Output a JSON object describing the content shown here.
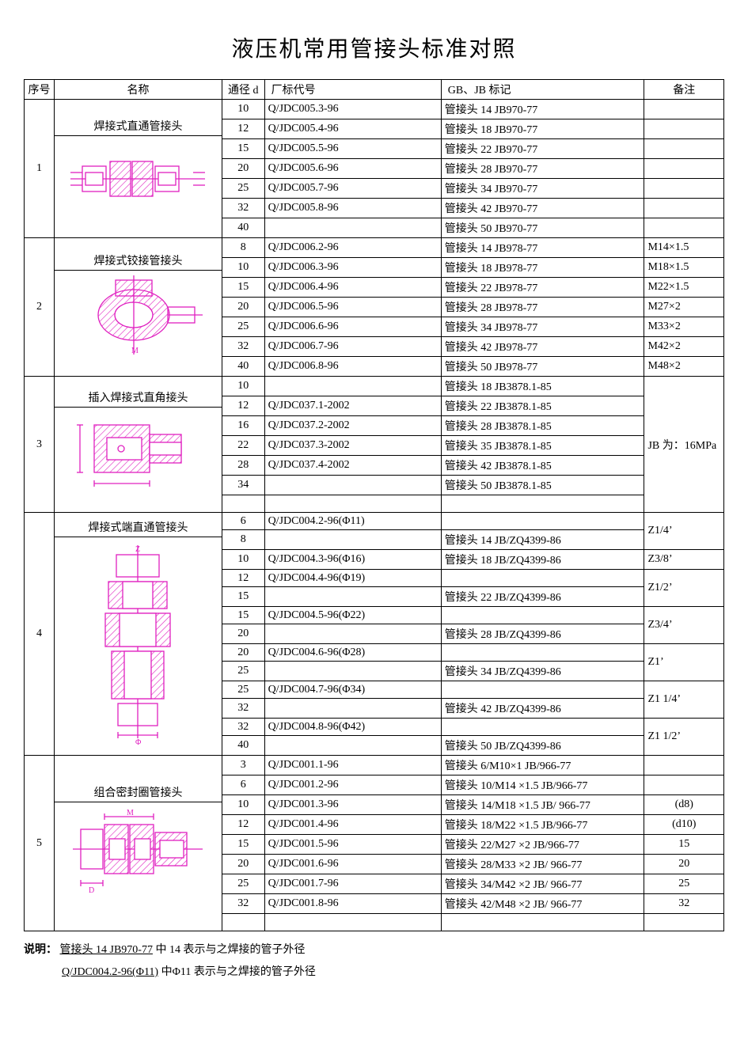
{
  "page": {
    "title": "液压机常用管接头标准对照",
    "headers": {
      "idx": "序号",
      "name": "名称",
      "d": "通径 d",
      "factory": "厂标代号",
      "gb": "GB、JB 标记",
      "note": "备注"
    },
    "diagram_stroke": "#e020c0",
    "diagram_hatch": "#e020c0",
    "sections": [
      {
        "idx": "1",
        "name": "焊接式直通管接头",
        "rows": [
          {
            "d": "10",
            "fac": "Q/JDC005.3-96",
            "gb": "管接头 14    JB970-77",
            "note": ""
          },
          {
            "d": "12",
            "fac": "Q/JDC005.4-96",
            "gb": "管接头 18    JB970-77",
            "note": ""
          },
          {
            "d": "15",
            "fac": "Q/JDC005.5-96",
            "gb": "管接头 22    JB970-77",
            "note": ""
          },
          {
            "d": "20",
            "fac": "Q/JDC005.6-96",
            "gb": "管接头 28    JB970-77",
            "note": ""
          },
          {
            "d": "25",
            "fac": "Q/JDC005.7-96",
            "gb": "管接头 34    JB970-77",
            "note": ""
          },
          {
            "d": "32",
            "fac": "Q/JDC005.8-96",
            "gb": "管接头 42    JB970-77",
            "note": ""
          },
          {
            "d": "40",
            "fac": "",
            "gb": "管接头 50    JB970-77",
            "note": ""
          }
        ]
      },
      {
        "idx": "2",
        "name": "焊接式铰接管接头",
        "rows": [
          {
            "d": "8",
            "fac": "Q/JDC006.2-96",
            "gb": "管接头 14    JB978-77",
            "note": "M14×1.5"
          },
          {
            "d": "10",
            "fac": "Q/JDC006.3-96",
            "gb": "管接头 18    JB978-77",
            "note": "M18×1.5"
          },
          {
            "d": "15",
            "fac": "Q/JDC006.4-96",
            "gb": "管接头 22    JB978-77",
            "note": "M22×1.5"
          },
          {
            "d": "20",
            "fac": "Q/JDC006.5-96",
            "gb": "管接头 28    JB978-77",
            "note": "M27×2"
          },
          {
            "d": "25",
            "fac": "Q/JDC006.6-96",
            "gb": "管接头 34    JB978-77",
            "note": "M33×2"
          },
          {
            "d": "32",
            "fac": "Q/JDC006.7-96",
            "gb": "管接头 42    JB978-77",
            "note": "M42×2"
          },
          {
            "d": "40",
            "fac": "Q/JDC006.8-96",
            "gb": "管接头 50    JB978-77",
            "note": "M48×2"
          }
        ]
      },
      {
        "idx": "3",
        "name": "插入焊接式直角接头",
        "note_merged": "JB 为：16MPa",
        "rows": [
          {
            "d": "10",
            "fac": "",
            "gb": "管接头 18    JB3878.1-85"
          },
          {
            "d": "12",
            "fac": "Q/JDC037.1-2002",
            "gb": "管接头 22    JB3878.1-85"
          },
          {
            "d": "16",
            "fac": "Q/JDC037.2-2002",
            "gb": "管接头 28    JB3878.1-85"
          },
          {
            "d": "22",
            "fac": "Q/JDC037.3-2002",
            "gb": "管接头 35    JB3878.1-85"
          },
          {
            "d": "28",
            "fac": "Q/JDC037.4-2002",
            "gb": "管接头 42    JB3878.1-85"
          },
          {
            "d": "34",
            "fac": "",
            "gb": "管接头 50    JB3878.1-85"
          },
          {
            "d": "",
            "fac": "",
            "gb": ""
          }
        ]
      },
      {
        "idx": "4",
        "name": "焊接式端直通管接头",
        "note_groups": [
          {
            "span": 2,
            "text": "Z1/4’"
          },
          {
            "span": 1,
            "text": "Z3/8’"
          },
          {
            "span": 2,
            "text": "Z1/2’"
          },
          {
            "span": 2,
            "text": "Z3/4’"
          },
          {
            "span": 2,
            "text": "Z1’"
          },
          {
            "span": 2,
            "text": "Z1  1/4’"
          },
          {
            "span": 2,
            "text": "Z1  1/2’"
          }
        ],
        "rows": [
          {
            "d": "6",
            "fac": "Q/JDC004.2-96(Φ11)",
            "gb": ""
          },
          {
            "d": "8",
            "fac": "",
            "gb": "管接头 14 JB/ZQ4399-86"
          },
          {
            "d": "10",
            "fac": "Q/JDC004.3-96(Φ16)",
            "gb": "管接头 18 JB/ZQ4399-86"
          },
          {
            "d": "12",
            "fac": "Q/JDC004.4-96(Φ19)",
            "gb": ""
          },
          {
            "d": "15",
            "fac": "",
            "gb": "管接头 22 JB/ZQ4399-86"
          },
          {
            "d": "15",
            "fac": "Q/JDC004.5-96(Φ22)",
            "gb": ""
          },
          {
            "d": "20",
            "fac": "",
            "gb": "管接头 28 JB/ZQ4399-86"
          },
          {
            "d": "20",
            "fac": "Q/JDC004.6-96(Φ28)",
            "gb": ""
          },
          {
            "d": "25",
            "fac": "",
            "gb": "管接头 34 JB/ZQ4399-86"
          },
          {
            "d": "25",
            "fac": "Q/JDC004.7-96(Φ34)",
            "gb": ""
          },
          {
            "d": "32",
            "fac": "",
            "gb": "管接头 42 JB/ZQ4399-86"
          },
          {
            "d": "32",
            "fac": "Q/JDC004.8-96(Φ42)",
            "gb": ""
          },
          {
            "d": "40",
            "fac": "",
            "gb": "管接头 50 JB/ZQ4399-86"
          }
        ]
      },
      {
        "idx": "5",
        "name": "组合密封圈管接头",
        "rows": [
          {
            "d": "3",
            "fac": "Q/JDC001.1-96",
            "gb": "管接头 6/M10×1 JB/966-77",
            "note": ""
          },
          {
            "d": "6",
            "fac": "Q/JDC001.2-96",
            "gb": "管接头 10/M14 ×1.5 JB/966-77",
            "note": ""
          },
          {
            "d": "10",
            "fac": "Q/JDC001.3-96",
            "gb": "管接头 14/M18 ×1.5 JB/ 966-77",
            "note": "(d8)",
            "note_center": true
          },
          {
            "d": "12",
            "fac": "Q/JDC001.4-96",
            "gb": "管接头 18/M22 ×1.5 JB/966-77",
            "note": "(d10)",
            "note_center": true
          },
          {
            "d": "15",
            "fac": "Q/JDC001.5-96",
            "gb": "管接头 22/M27 ×2    JB/966-77",
            "note": "15",
            "note_center": true
          },
          {
            "d": "20",
            "fac": "Q/JDC001.6-96",
            "gb": "管接头 28/M33 ×2    JB/ 966-77",
            "note": "20",
            "note_center": true
          },
          {
            "d": "25",
            "fac": "Q/JDC001.7-96",
            "gb": "管接头 34/M42 ×2    JB/ 966-77",
            "note": "25",
            "note_center": true
          },
          {
            "d": "32",
            "fac": "Q/JDC001.8-96",
            "gb": "管接头 42/M48 ×2    JB/ 966-77",
            "note": "32",
            "note_center": true
          },
          {
            "d": "",
            "fac": "",
            "gb": "",
            "note": ""
          }
        ]
      }
    ],
    "footnote": {
      "label": "说明：",
      "line1a": "管接头 14    JB970-77",
      "line1b": " 中 14 表示与之焊接的管子外径",
      "line2a": "Q/JDC004.2-96(Φ11)",
      "line2b": "  中Φ11 表示与之焊接的管子外径"
    }
  }
}
